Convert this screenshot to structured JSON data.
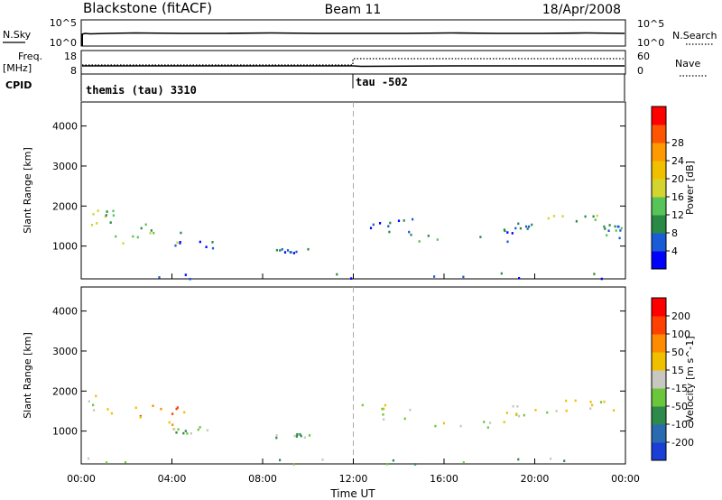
{
  "header": {
    "station": "Blackstone (fitACF)",
    "beam": "Beam 11",
    "date": "18/Apr/2008"
  },
  "left_labels": {
    "nsky": "N.Sky",
    "freq_line1": "Freq.",
    "freq_line2": "[MHz]",
    "cpid": "CPID",
    "nsky_ticks": [
      "10^5",
      "10^0"
    ],
    "freq_ticks": [
      "18",
      "8"
    ]
  },
  "right_labels": {
    "nsearch": "N.Search",
    "nave": "Nave",
    "nsearch_ticks": [
      "10^5",
      "10^0"
    ],
    "nave_ticks": [
      "60",
      "0"
    ]
  },
  "cpid_segments": [
    {
      "label": "themis (tau) 3310",
      "start": "00:00"
    },
    {
      "label": "tau -502",
      "start": "12:00"
    }
  ],
  "xaxis": {
    "label": "Time UT",
    "ticks": [
      "00:00",
      "04:00",
      "08:00",
      "12:00",
      "16:00",
      "20:00",
      "00:00"
    ]
  },
  "chart_data": [
    {
      "type": "heatmap",
      "name": "Power",
      "ylabel": "Slant Range [km]",
      "ylim": [
        180,
        4600
      ],
      "yticks": [
        "1000",
        "2000",
        "3000",
        "4000"
      ],
      "colorbar_label": "Power [dB]",
      "colorbar_ticks": [
        "4",
        "8",
        "12",
        "16",
        "20",
        "24",
        "28"
      ],
      "colorbar_colors": [
        "#0000ff",
        "#1a5bd6",
        "#2a8a45",
        "#57c457",
        "#d4d430",
        "#f0c000",
        "#ff9900",
        "#ff5500",
        "#ff0000"
      ],
      "swaths": [
        {
          "t": [
            0.0,
            1.5
          ],
          "r": [
            1450,
            1950
          ],
          "level": 3
        },
        {
          "t": [
            1.3,
            4.6
          ],
          "r": [
            1050,
            1650
          ],
          "level": 3
        },
        {
          "t": [
            3.8,
            6.0
          ],
          "r": [
            950,
            1150
          ],
          "level": 1
        },
        {
          "t": [
            8.5,
            10.2
          ],
          "r": [
            850,
            950
          ],
          "level": 1
        },
        {
          "t": [
            12.3,
            14.6
          ],
          "r": [
            1300,
            1700
          ],
          "level": 1
        },
        {
          "t": [
            14.6,
            19.0
          ],
          "r": [
            1100,
            1300
          ],
          "level": 2
        },
        {
          "t": [
            18.5,
            20.0
          ],
          "r": [
            1350,
            1600
          ],
          "level": 1
        },
        {
          "t": [
            20.5,
            23.5
          ],
          "r": [
            1550,
            1800
          ],
          "level": 3
        },
        {
          "t": [
            23.0,
            24.0
          ],
          "r": [
            1150,
            1600
          ],
          "level": 2
        },
        {
          "t": [
            0.0,
            24.0
          ],
          "r": [
            200,
            350
          ],
          "level": 1
        }
      ]
    },
    {
      "type": "heatmap",
      "name": "Velocity",
      "ylabel": "Slant Range [km]",
      "ylim": [
        180,
        4600
      ],
      "yticks": [
        "1000",
        "2000",
        "3000",
        "4000"
      ],
      "colorbar_label": "Velocity [m s^-1]",
      "colorbar_ticks": [
        "200",
        "100",
        "50",
        "15",
        "-15",
        "-50",
        "-100",
        "-200"
      ],
      "colorbar_colors": [
        "#1a3ed6",
        "#2a6ab0",
        "#2e8a4a",
        "#6cc63c",
        "#c8c8c0",
        "#f0c000",
        "#ff8c00",
        "#ff4000",
        "#ff0000"
      ],
      "swaths": [
        {
          "t": [
            0.0,
            1.5
          ],
          "r": [
            1450,
            1950
          ],
          "level": 4
        },
        {
          "t": [
            1.3,
            4.6
          ],
          "r": [
            1050,
            1700
          ],
          "level": 6
        },
        {
          "t": [
            3.8,
            6.0
          ],
          "r": [
            950,
            1150
          ],
          "level": 3
        },
        {
          "t": [
            8.5,
            10.2
          ],
          "r": [
            850,
            950
          ],
          "level": 3
        },
        {
          "t": [
            12.3,
            14.6
          ],
          "r": [
            1300,
            1750
          ],
          "level": 4
        },
        {
          "t": [
            14.6,
            19.0
          ],
          "r": [
            1100,
            1300
          ],
          "level": 4
        },
        {
          "t": [
            18.5,
            20.0
          ],
          "r": [
            1400,
            1650
          ],
          "level": 4
        },
        {
          "t": [
            20.5,
            24.0
          ],
          "r": [
            1450,
            1800
          ],
          "level": 4
        },
        {
          "t": [
            0.0,
            24.0
          ],
          "r": [
            200,
            350
          ],
          "level": 3
        }
      ]
    }
  ]
}
